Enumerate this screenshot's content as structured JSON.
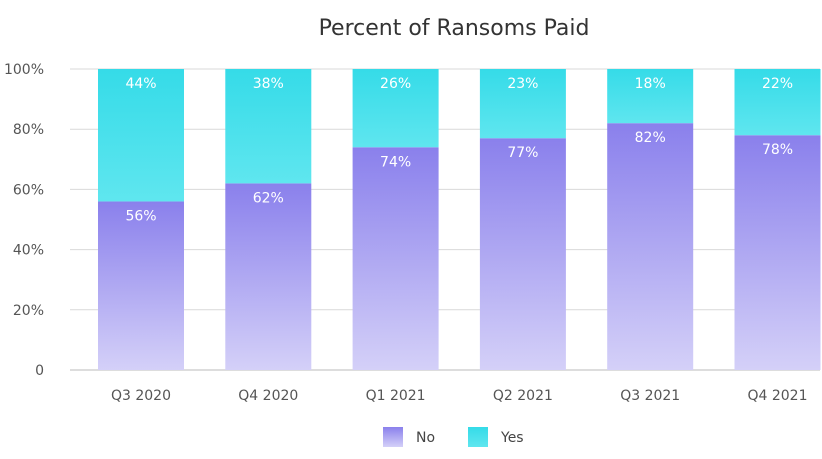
{
  "chart_data": {
    "type": "bar",
    "stacked": true,
    "title": "Percent of Ransoms Paid",
    "categories": [
      "Q3 2020",
      "Q4 2020",
      "Q1 2021",
      "Q2 2021",
      "Q3 2021",
      "Q4 2021"
    ],
    "series": [
      {
        "name": "No",
        "values": [
          56,
          62,
          74,
          77,
          82,
          78
        ],
        "labels": [
          "56%",
          "62%",
          "74%",
          "77%",
          "82%",
          "78%"
        ]
      },
      {
        "name": "Yes",
        "values": [
          44,
          38,
          26,
          23,
          18,
          22
        ],
        "labels": [
          "44%",
          "38%",
          "26%",
          "23%",
          "18%",
          "22%"
        ]
      }
    ],
    "ylim": [
      0,
      100
    ],
    "yticks": [
      "0",
      "20%",
      "40%",
      "60%",
      "80%",
      "100%"
    ],
    "ytick_values": [
      0,
      20,
      40,
      60,
      80,
      100
    ],
    "grid": true,
    "legend_position": "bottom",
    "colors": {
      "No": "#8f86ee",
      "Yes": "#46dfeb"
    }
  }
}
